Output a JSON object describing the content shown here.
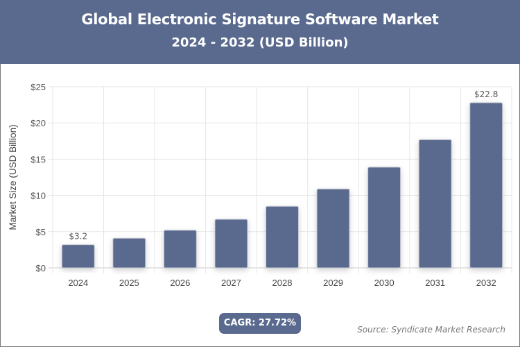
{
  "header": {
    "title": "Global Electronic Signature Software Market",
    "subtitle": "2024 - 2032 (USD Billion)"
  },
  "chart_data": {
    "type": "bar",
    "categories": [
      "2024",
      "2025",
      "2026",
      "2027",
      "2028",
      "2029",
      "2030",
      "2031",
      "2032"
    ],
    "values": [
      3.2,
      4.1,
      5.2,
      6.7,
      8.5,
      10.9,
      13.9,
      17.7,
      22.8
    ],
    "data_labels": {
      "0": "$3.2",
      "8": "$22.8"
    },
    "ylabel": "Market Size (USD Billion)",
    "xlabel": "",
    "ylim": [
      0,
      25
    ],
    "yticks": [
      "$0",
      "$5",
      "$10",
      "$15",
      "$20",
      "$25"
    ],
    "grid": true,
    "bar_color": "#5a6a8f"
  },
  "footer": {
    "cagr": "CAGR: 27.72%",
    "source": "Source: Syndicate Market Research"
  }
}
